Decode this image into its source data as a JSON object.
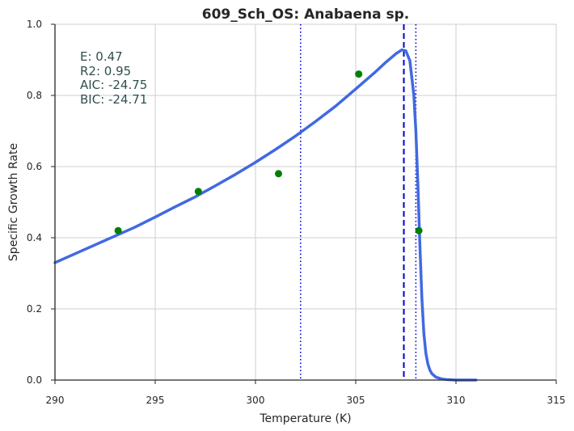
{
  "chart_data": {
    "type": "line",
    "title": "609_Sch_OS: Anabaena sp.",
    "xlabel": "Temperature (K)",
    "ylabel": "Specific Growth Rate",
    "xlim": [
      290,
      315
    ],
    "ylim": [
      0.0,
      1.0
    ],
    "xticks": [
      290,
      295,
      300,
      305,
      310,
      315
    ],
    "yticks": [
      0.0,
      0.2,
      0.4,
      0.6,
      0.8,
      1.0
    ],
    "xtick_labels": [
      "290",
      "295",
      "300",
      "305",
      "310",
      "315"
    ],
    "ytick_labels": [
      "0.0",
      "0.2",
      "0.4",
      "0.6",
      "0.8",
      "1.0"
    ],
    "grid": true,
    "annotations": [
      "E:  0.47",
      "R2:  0.95",
      "AIC: -24.75",
      "BIC: -24.71"
    ],
    "points": {
      "x": [
        293.15,
        297.15,
        301.15,
        305.15,
        308.15
      ],
      "y": [
        0.42,
        0.53,
        0.58,
        0.86,
        0.42
      ],
      "color": "#008000"
    },
    "fit_curve": {
      "color": "#4169E1",
      "x": [
        290.0,
        291.0,
        292.0,
        293.0,
        294.0,
        295.0,
        296.0,
        297.0,
        298.0,
        299.0,
        300.0,
        301.0,
        302.0,
        303.0,
        304.0,
        305.0,
        306.0,
        306.5,
        307.0,
        307.3,
        307.5,
        307.7,
        307.9,
        308.0,
        308.1,
        308.2,
        308.3,
        308.4,
        308.5,
        308.6,
        308.7,
        308.8,
        309.0,
        309.3,
        309.6,
        310.0,
        311.0
      ],
      "y": [
        0.33,
        0.355,
        0.38,
        0.405,
        0.43,
        0.458,
        0.487,
        0.515,
        0.546,
        0.578,
        0.612,
        0.648,
        0.686,
        0.727,
        0.77,
        0.818,
        0.867,
        0.893,
        0.917,
        0.928,
        0.925,
        0.898,
        0.8,
        0.7,
        0.55,
        0.38,
        0.23,
        0.13,
        0.075,
        0.045,
        0.028,
        0.018,
        0.008,
        0.003,
        0.001,
        0.0,
        0.0
      ]
    },
    "vlines": [
      {
        "x": 302.25,
        "style": "dotted",
        "color": "#0000CD"
      },
      {
        "x": 307.4,
        "style": "dashed",
        "color": "#0000CD"
      },
      {
        "x": 308.0,
        "style": "dotted",
        "color": "#0000CD"
      }
    ]
  }
}
